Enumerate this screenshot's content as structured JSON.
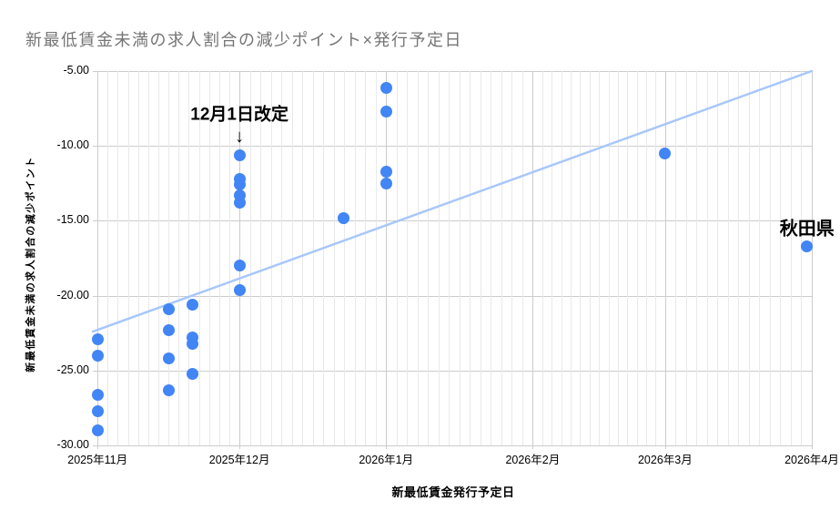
{
  "chart_data": {
    "type": "scatter",
    "title": "新最低賃金未満の求人割合の減少ポイント×発行予定日",
    "xlabel": "新最低賃金発行予定日",
    "ylabel": "新最低賃金未満の求人割合の減少ポイント",
    "x_range": [
      "2025-10-31",
      "2026-04-01"
    ],
    "ylim": [
      -30,
      -5
    ],
    "grid": {
      "horizontal_major_step": 5,
      "vertical_minor_per_month": 14,
      "gridlines_on": true
    },
    "legend_position": "none",
    "y_ticks": [
      {
        "label": "-5.00",
        "value": -5
      },
      {
        "label": "-10.00",
        "value": -10
      },
      {
        "label": "-15.00",
        "value": -15
      },
      {
        "label": "-20.00",
        "value": -20
      },
      {
        "label": "-25.00",
        "value": -25
      },
      {
        "label": "-30.00",
        "value": -30
      }
    ],
    "x_ticks": [
      {
        "label": "2025年11月",
        "date": "2025-11-01"
      },
      {
        "label": "2025年12月",
        "date": "2025-12-01"
      },
      {
        "label": "2026年1月",
        "date": "2026-01-01"
      },
      {
        "label": "2026年2月",
        "date": "2026-02-01"
      },
      {
        "label": "2026年3月",
        "date": "2026-03-01"
      },
      {
        "label": "2026年4月",
        "date": "2026-04-01"
      }
    ],
    "series": [
      {
        "name": "新最低賃金未満の求人割合の減少ポイント",
        "points": [
          {
            "date": "2025-11-01",
            "y": -22.9
          },
          {
            "date": "2025-11-01",
            "y": -24.0
          },
          {
            "date": "2025-11-01",
            "y": -26.6
          },
          {
            "date": "2025-11-01",
            "y": -27.7
          },
          {
            "date": "2025-11-01",
            "y": -29.0
          },
          {
            "date": "2025-11-16",
            "y": -20.9
          },
          {
            "date": "2025-11-16",
            "y": -22.3
          },
          {
            "date": "2025-11-16",
            "y": -24.2
          },
          {
            "date": "2025-11-16",
            "y": -26.3
          },
          {
            "date": "2025-11-21",
            "y": -20.6
          },
          {
            "date": "2025-11-21",
            "y": -22.8
          },
          {
            "date": "2025-11-21",
            "y": -23.2
          },
          {
            "date": "2025-11-21",
            "y": -25.2
          },
          {
            "date": "2025-12-01",
            "y": -10.6
          },
          {
            "date": "2025-12-01",
            "y": -12.2
          },
          {
            "date": "2025-12-01",
            "y": -12.6
          },
          {
            "date": "2025-12-01",
            "y": -13.3
          },
          {
            "date": "2025-12-01",
            "y": -13.8
          },
          {
            "date": "2025-12-01",
            "y": -18.0
          },
          {
            "date": "2025-12-01",
            "y": -19.6
          },
          {
            "date": "2025-12-23",
            "y": -14.8
          },
          {
            "date": "2026-01-01",
            "y": -6.1
          },
          {
            "date": "2026-01-01",
            "y": -7.7
          },
          {
            "date": "2026-01-01",
            "y": -11.7
          },
          {
            "date": "2026-01-01",
            "y": -12.5
          },
          {
            "date": "2026-03-01",
            "y": -10.5
          },
          {
            "date": "2026-03-31",
            "y": -16.7,
            "note": "秋田県"
          }
        ]
      }
    ],
    "trendline": {
      "start_date": "2025-10-31",
      "start_value": -22.4,
      "end_date": "2026-04-01",
      "end_value": -5.0
    },
    "annotations": [
      {
        "name": "annotation-dec1-revision",
        "text": "12月1日改定",
        "date": "2025-12-01",
        "value": -7.8
      },
      {
        "name": "annotation-arrow-down",
        "text": "↓",
        "date": "2025-12-01",
        "value": -9.4
      },
      {
        "name": "annotation-akita-label",
        "text": "秋田県",
        "date": "2026-03-31",
        "value": -15.4
      }
    ],
    "colors": {
      "point": "#4285f4",
      "trendline": "#a8c7fa",
      "grid_major": "#cccccc",
      "grid_minor": "#e9e9e9",
      "tick_label": "#000000",
      "title": "#757575"
    }
  }
}
